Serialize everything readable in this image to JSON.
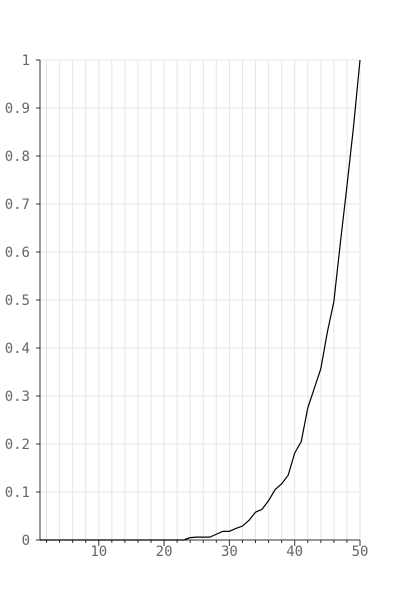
{
  "chart_data": {
    "type": "line",
    "title": "",
    "xlabel": "",
    "ylabel": "",
    "xlim": [
      1,
      50
    ],
    "ylim": [
      0,
      1
    ],
    "grid": true,
    "x_ticks": [
      10,
      20,
      30,
      40,
      50
    ],
    "y_ticks": [
      0,
      0.1,
      0.2,
      0.3,
      0.4,
      0.5,
      0.6,
      0.7,
      0.8,
      0.9,
      1
    ],
    "x_tick_labels": [
      "10",
      "20",
      "30",
      "40",
      "50"
    ],
    "y_tick_labels": [
      "0",
      "0.1",
      "0.2",
      "0.3",
      "0.4",
      "0.5",
      "0.6",
      "0.7",
      "0.8",
      "0.9",
      "1"
    ],
    "line_color": "#000000",
    "grid_color": "#e6e6e6",
    "axis_color": "#333333",
    "series": [
      {
        "x": [
          1,
          2,
          3,
          4,
          5,
          6,
          7,
          8,
          9,
          10,
          11,
          12,
          13,
          14,
          15,
          16,
          17,
          18,
          19,
          20,
          21,
          22,
          23,
          24,
          25,
          26,
          27,
          28,
          29,
          30,
          31,
          32,
          33,
          34,
          35,
          36,
          37,
          38,
          39,
          40,
          41,
          42,
          43,
          44,
          45,
          46,
          47,
          48,
          49,
          50
        ],
        "values": [
          0,
          0,
          0,
          0,
          0,
          0,
          0,
          0,
          0,
          0,
          0,
          0,
          0,
          0,
          0,
          0,
          0,
          0,
          0,
          0,
          0,
          0,
          0,
          0.005,
          0.006,
          0.006,
          0.006,
          0.012,
          0.018,
          0.018,
          0.024,
          0.029,
          0.041,
          0.058,
          0.064,
          0.082,
          0.105,
          0.117,
          0.135,
          0.181,
          0.205,
          0.275,
          0.316,
          0.357,
          0.433,
          0.497,
          0.62,
          0.737,
          0.86,
          1.0
        ]
      }
    ]
  }
}
